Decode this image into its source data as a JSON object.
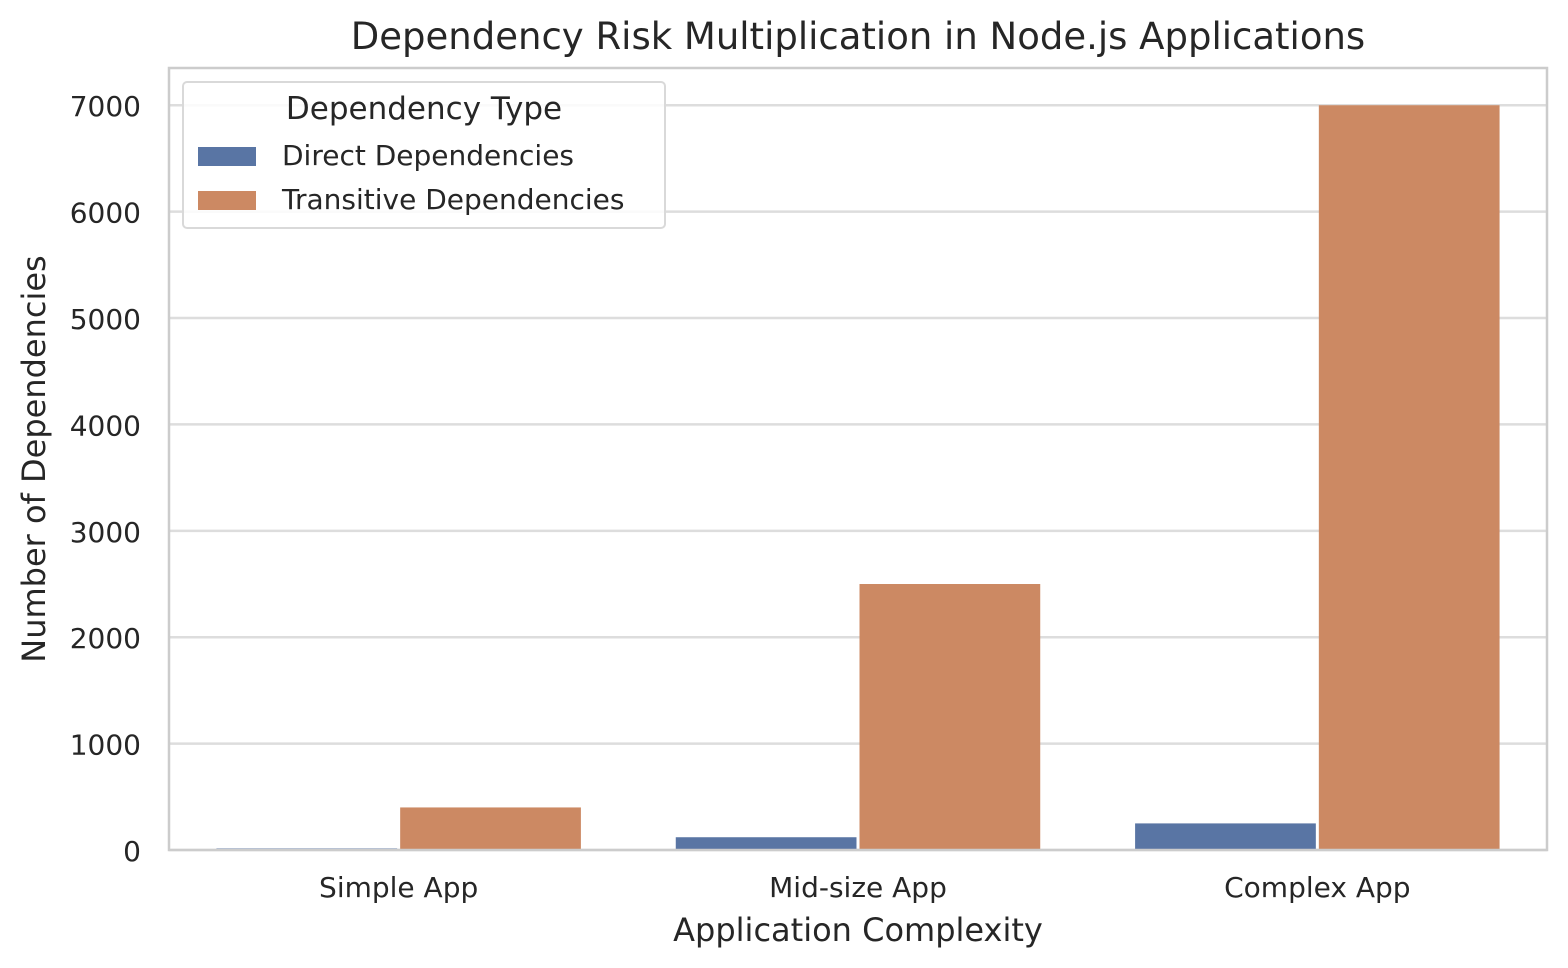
{
  "chart_data": {
    "type": "bar",
    "title": "Dependency Risk Multiplication in Node.js Applications",
    "xlabel": "Application Complexity",
    "ylabel": "Number of Dependencies",
    "categories": [
      "Simple App",
      "Mid-size App",
      "Complex App"
    ],
    "series": [
      {
        "name": "Direct Dependencies",
        "values": [
          15,
          120,
          250
        ],
        "color": "#5975a4"
      },
      {
        "name": "Transitive Dependencies",
        "values": [
          400,
          2500,
          7000
        ],
        "color": "#cc8963"
      }
    ],
    "ylim": [
      0,
      7350
    ],
    "yticks": [
      0,
      1000,
      2000,
      3000,
      4000,
      5000,
      6000,
      7000
    ],
    "grid": true,
    "legend": {
      "title": "Dependency Type",
      "placement": "upper-left"
    }
  }
}
